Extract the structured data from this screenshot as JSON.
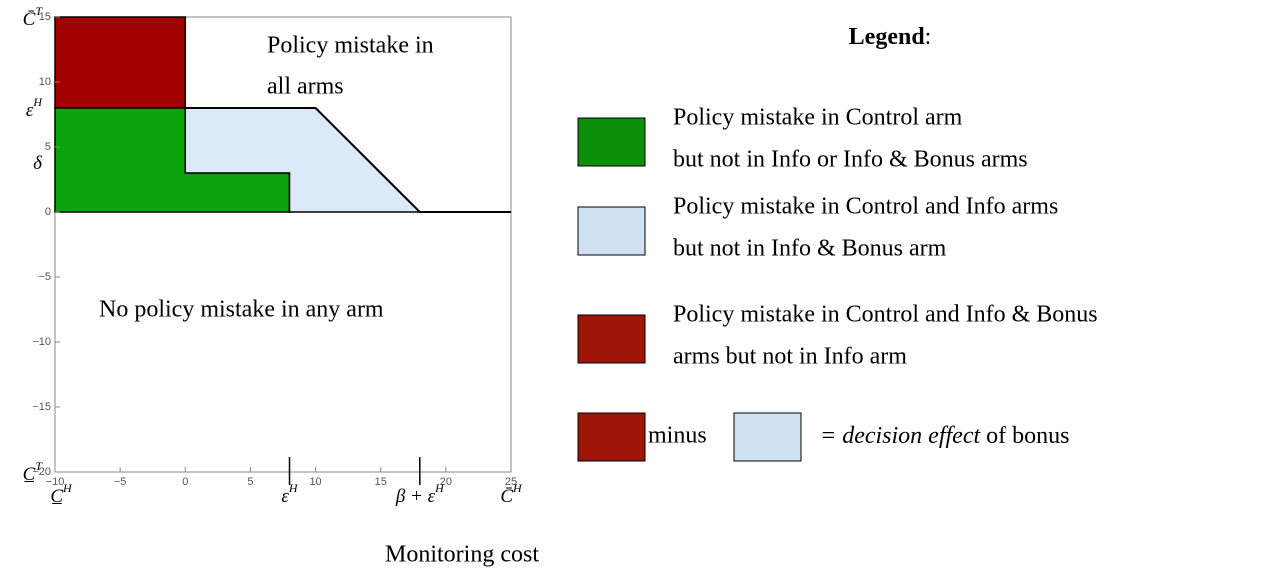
{
  "chart_data": {
    "type": "region",
    "xlim": [
      -10,
      25
    ],
    "ylim": [
      -20,
      15
    ],
    "xticks": [
      {
        "value": -10,
        "label": "−10"
      },
      {
        "value": -5,
        "label": "−5"
      },
      0,
      5,
      10,
      15,
      20,
      25
    ],
    "yticks": [
      {
        "value": -20,
        "label": "−20"
      },
      {
        "value": -15,
        "label": "−15"
      },
      {
        "value": -10,
        "label": "−10"
      },
      {
        "value": -5,
        "label": "−5"
      },
      0,
      5,
      10,
      15
    ],
    "x_symbols": [
      {
        "value": -10,
        "base": "C̲",
        "sup": "H"
      },
      {
        "value": 8,
        "base": "ε",
        "sup": "H",
        "long_tick": true
      },
      {
        "value": 18,
        "base": "β + ε",
        "sup": "H",
        "long_tick": true
      },
      {
        "value": 25,
        "base": "C̄",
        "sup": "H"
      }
    ],
    "y_symbols": [
      {
        "value": 15,
        "base": "C̄",
        "sup": "T"
      },
      {
        "value": 8,
        "base": "ε",
        "sup": "H"
      },
      {
        "value": 3,
        "base": "δ"
      },
      {
        "value": -20,
        "base": "C̲",
        "sup": "T"
      }
    ],
    "xlabel": "Monitoring cost",
    "regions": [
      {
        "color": "#a20000",
        "x": [
          -10,
          0,
          0,
          -10
        ],
        "y": [
          8,
          8,
          15,
          15
        ]
      },
      {
        "color": "#0ba30b",
        "x": [
          -10,
          -10,
          0,
          0,
          8,
          8
        ],
        "y": [
          0,
          8,
          8,
          3,
          3,
          0
        ]
      },
      {
        "color": "#dce9f8",
        "x": [
          0,
          10,
          18,
          8,
          8,
          0
        ],
        "y": [
          8,
          8,
          0,
          0,
          3,
          3
        ]
      }
    ],
    "boundary": {
      "color": "#000000",
      "x": [
        0,
        10,
        18,
        25
      ],
      "y": [
        8,
        8,
        0,
        0
      ]
    },
    "annotations": {
      "upper": [
        "Policy mistake in",
        "all arms"
      ],
      "lower": "No policy mistake in any arm"
    }
  },
  "legend": {
    "title": "Legend",
    "title_suffix": ":",
    "items": [
      {
        "color": "#0b8f0b",
        "lines": [
          "Policy mistake in Control arm",
          "but not in Info or Info & Bonus arms"
        ]
      },
      {
        "color": "#cfe0f1",
        "lines": [
          "Policy mistake in Control and Info arms",
          "but not in Info & Bonus arm"
        ]
      },
      {
        "color": "#9e1508",
        "lines": [
          "Policy mistake in Control and Info & Bonus",
          "arms but not in Info arm"
        ]
      }
    ],
    "equation": {
      "left_color": "#9e1508",
      "operator": "minus",
      "right_color": "#cfe0f1",
      "emphasis": "= decision effect",
      "text": "of bonus"
    }
  }
}
